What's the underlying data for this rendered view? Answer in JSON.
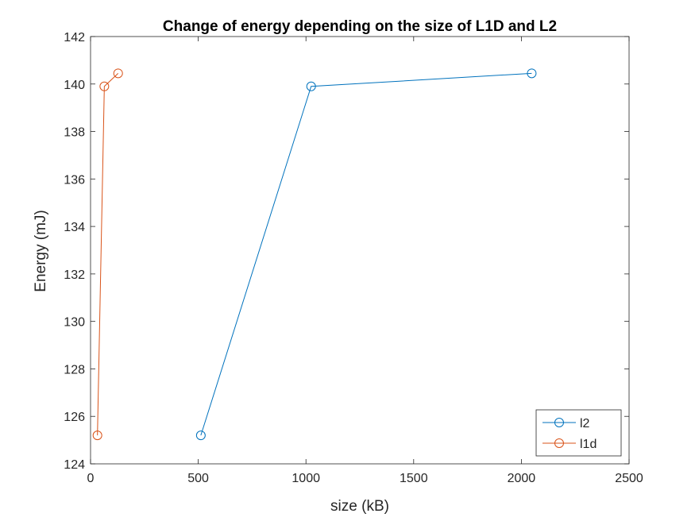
{
  "chart_data": {
    "type": "line",
    "title": "Change of energy depending on the size of L1D and L2",
    "xlabel": "size (kB)",
    "ylabel": "Energy (mJ)",
    "xlim": [
      0,
      2500
    ],
    "ylim": [
      124,
      142
    ],
    "xticks": [
      0,
      500,
      1000,
      1500,
      2000,
      2500
    ],
    "yticks": [
      124,
      126,
      128,
      130,
      132,
      134,
      136,
      138,
      140,
      142
    ],
    "grid": false,
    "legend_position": "bottom-right",
    "marker": "circle",
    "series": [
      {
        "name": "l2",
        "color": "#0072BD",
        "x": [
          512,
          1024,
          2048
        ],
        "y": [
          125.2,
          139.9,
          140.45
        ]
      },
      {
        "name": "l1d",
        "color": "#D95319",
        "x": [
          32,
          64,
          128
        ],
        "y": [
          125.2,
          139.9,
          140.45
        ]
      }
    ]
  }
}
